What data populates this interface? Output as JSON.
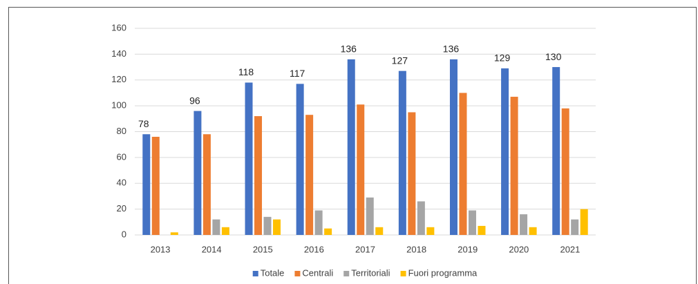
{
  "chart_data": {
    "type": "bar",
    "categories": [
      "2013",
      "2014",
      "2015",
      "2016",
      "2017",
      "2018",
      "2019",
      "2020",
      "2021"
    ],
    "series": [
      {
        "name": "Totale",
        "color": "#4472c4",
        "values": [
          78,
          96,
          118,
          117,
          136,
          127,
          136,
          129,
          130
        ],
        "show_labels": true
      },
      {
        "name": "Centrali",
        "color": "#ed7d31",
        "values": [
          76,
          78,
          92,
          93,
          101,
          95,
          110,
          107,
          98
        ]
      },
      {
        "name": "Territoriali",
        "color": "#a5a5a5",
        "values": [
          0,
          12,
          14,
          19,
          29,
          26,
          19,
          16,
          12
        ]
      },
      {
        "name": "Fuori programma",
        "color": "#ffc000",
        "values": [
          2,
          6,
          12,
          5,
          6,
          6,
          7,
          6,
          20
        ]
      }
    ],
    "ylim": [
      0,
      160
    ],
    "yticks": [
      0,
      20,
      40,
      60,
      80,
      100,
      120,
      140,
      160
    ],
    "grid": true,
    "legend": "bottom"
  }
}
